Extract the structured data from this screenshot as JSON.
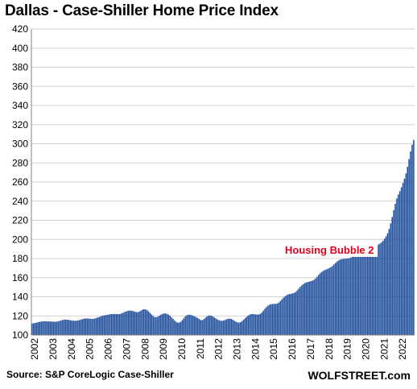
{
  "chart_data": {
    "type": "bar",
    "title": "Dallas - Case-Shiller Home Price Index",
    "source": "Source: S&P CoreLogic Case-Shiller",
    "brand": "WOLFSTREET.com",
    "annotation": "Housing Bubble 2",
    "xlabel": "",
    "ylabel": "",
    "ylim": [
      100,
      420
    ],
    "yticks": [
      100,
      120,
      140,
      160,
      180,
      200,
      220,
      240,
      260,
      280,
      300,
      320,
      340,
      360,
      380,
      400,
      420
    ],
    "xtick_labels": [
      "2002",
      "2003",
      "2004",
      "2005",
      "2006",
      "2007",
      "2008",
      "2009",
      "2010",
      "2011",
      "2012",
      "2013",
      "2014",
      "2015",
      "2016",
      "2017",
      "2018",
      "2019",
      "2020",
      "2021",
      "2022"
    ],
    "grid": true,
    "bar_color": "#1f4e9c",
    "start": "2002-01",
    "frequency": "monthly",
    "values": [
      112.0,
      112.3,
      112.6,
      113.0,
      113.4,
      113.8,
      114.1,
      114.3,
      114.4,
      114.4,
      114.3,
      114.3,
      114.2,
      114.1,
      114.0,
      113.9,
      114.0,
      114.3,
      114.8,
      115.3,
      115.8,
      116.1,
      116.2,
      116.0,
      115.8,
      115.5,
      115.2,
      115.0,
      114.9,
      115.0,
      115.3,
      115.7,
      116.2,
      116.7,
      117.1,
      117.3,
      117.3,
      117.2,
      117.0,
      116.9,
      117.0,
      117.3,
      117.8,
      118.4,
      119.0,
      119.6,
      120.1,
      120.5,
      120.8,
      121.1,
      121.4,
      121.7,
      121.9,
      122.0,
      122.0,
      121.9,
      121.8,
      121.9,
      122.3,
      123.0,
      123.8,
      124.5,
      125.1,
      125.5,
      125.6,
      125.4,
      125.0,
      124.5,
      124.0,
      124.0,
      124.5,
      125.5,
      126.5,
      127.0,
      126.8,
      126.0,
      124.8,
      123.2,
      121.5,
      120.0,
      118.8,
      118.6,
      119.2,
      120.2,
      121.2,
      122.0,
      122.5,
      122.6,
      122.2,
      121.4,
      120.2,
      118.6,
      117.0,
      115.3,
      113.8,
      113.0,
      113.0,
      113.8,
      115.5,
      117.5,
      119.5,
      120.7,
      121.2,
      121.2,
      120.8,
      120.2,
      119.5,
      118.8,
      118.0,
      116.8,
      115.8,
      115.5,
      116.5,
      118.0,
      119.3,
      120.2,
      120.5,
      120.2,
      119.4,
      118.4,
      117.3,
      116.3,
      115.5,
      115.0,
      114.9,
      115.2,
      115.8,
      116.5,
      117.0,
      117.1,
      116.8,
      116.0,
      115.0,
      114.0,
      113.3,
      113.0,
      113.4,
      114.5,
      116.0,
      117.6,
      119.0,
      120.3,
      121.3,
      122.0,
      122.0,
      121.8,
      121.5,
      121.4,
      121.5,
      122.2,
      123.6,
      125.5,
      127.5,
      129.3,
      130.8,
      131.8,
      132.3,
      132.5,
      132.5,
      132.6,
      133.0,
      134.0,
      135.5,
      137.3,
      139.0,
      140.5,
      141.6,
      142.4,
      142.9,
      143.2,
      143.5,
      144.0,
      145.0,
      146.6,
      148.5,
      150.4,
      152.0,
      153.3,
      154.3,
      155.0,
      155.5,
      155.9,
      156.3,
      156.9,
      157.8,
      159.2,
      161.0,
      162.9,
      164.6,
      166.0,
      167.1,
      167.9,
      168.6,
      169.3,
      170.1,
      171.0,
      172.2,
      173.8,
      175.4,
      176.9,
      178.0,
      178.8,
      179.3,
      179.6,
      179.8,
      179.9,
      180.1,
      180.4,
      180.9,
      181.7,
      182.7,
      183.7,
      184.5,
      185.1,
      185.4,
      185.6,
      185.8,
      186.2,
      186.8,
      187.6,
      188.6,
      189.7,
      190.8,
      191.8,
      192.8,
      193.7,
      194.6,
      195.6,
      196.9,
      198.6,
      200.8,
      203.3,
      206.5,
      211.0,
      216.8,
      223.5,
      230.5,
      237.2,
      242.8,
      247.0,
      250.5,
      254.5,
      259.0,
      263.5,
      269.0,
      276.0,
      284.0,
      292.0,
      299.0,
      304.0
    ]
  }
}
